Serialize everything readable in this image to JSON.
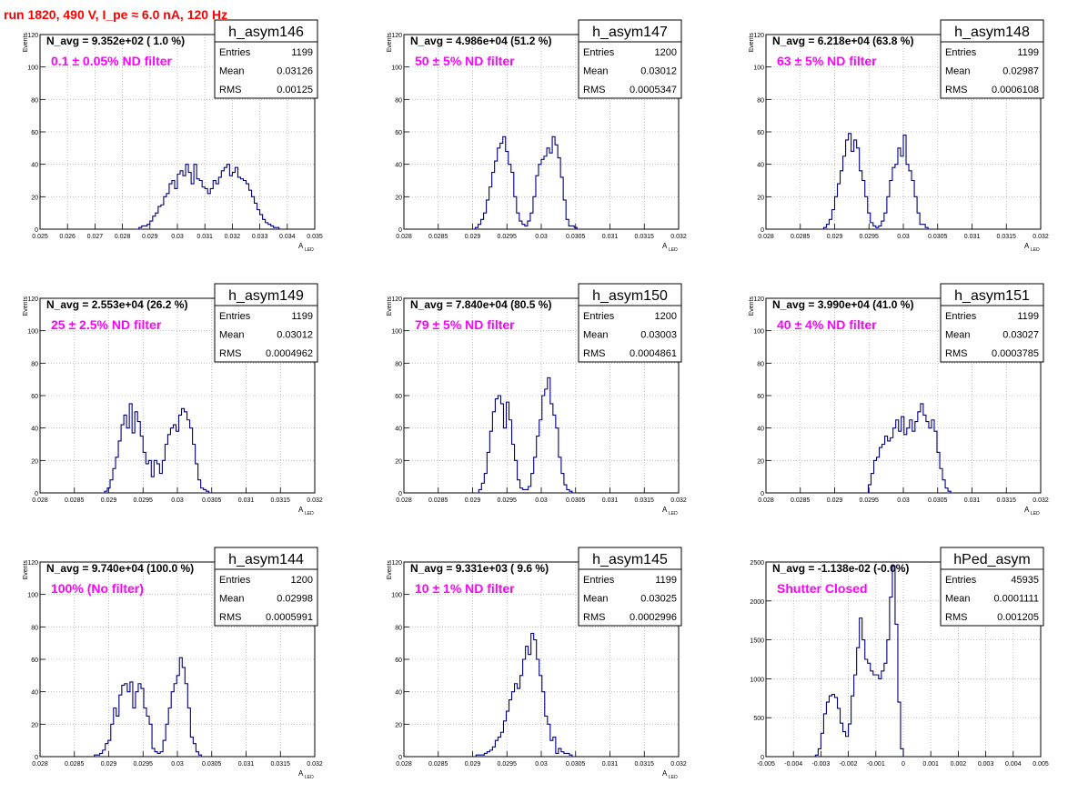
{
  "run_title": "run 1820,   490 V, I_pe ≈ 6.0 nA, 120 Hz",
  "colors": {
    "histogram": "#000080",
    "filter_text": "#ff00ff",
    "title": "#ff0000",
    "frame": "#000000"
  },
  "stats_labels": {
    "entries": "Entries",
    "mean": "Mean",
    "rms": "RMS"
  },
  "chart_data": [
    {
      "type": "histogram",
      "name": "h_asym146",
      "navg": "N_avg = 9.352e+02 ( 1.0 %)",
      "filter": "0.1 ± 0.05% ND filter",
      "entries": "1199",
      "mean": "0.03126",
      "rms": "0.00125",
      "xlabel": "A",
      "xlabel_sub": "LED",
      "ylabel": "Events",
      "xlim": [
        0.025,
        0.035
      ],
      "ylim": [
        0,
        120
      ],
      "xticks": [
        0.025,
        0.026,
        0.027,
        0.028,
        0.029,
        0.03,
        0.031,
        0.032,
        0.033,
        0.034,
        0.035
      ],
      "xtick_labels": [
        "0.025",
        "0.026",
        "0.027",
        "0.028",
        "0.029",
        "0.03",
        "0.031",
        "0.032",
        "0.033",
        "0.034",
        "0.035"
      ],
      "yticks": [
        0,
        20,
        40,
        60,
        80,
        100,
        120
      ],
      "ytick_labels": [
        "0",
        "20",
        "40",
        "60",
        "80",
        "100",
        "120"
      ],
      "bin_start": 0.0285,
      "bin_width": 0.0001,
      "values": [
        0,
        1,
        2,
        2,
        3,
        5,
        8,
        10,
        14,
        15,
        20,
        22,
        28,
        30,
        25,
        34,
        36,
        33,
        40,
        35,
        28,
        40,
        31,
        30,
        26,
        25,
        22,
        25,
        30,
        28,
        32,
        36,
        38,
        40,
        33,
        35,
        38,
        32,
        31,
        30,
        28,
        24,
        20,
        16,
        12,
        9,
        6,
        4,
        3,
        2,
        1,
        1
      ]
    },
    {
      "type": "histogram",
      "name": "h_asym147",
      "navg": "N_avg = 4.986e+04 (51.2 %)",
      "filter": "50 ± 5% ND filter",
      "entries": "1200",
      "mean": "0.03012",
      "rms": "0.0005347",
      "xlabel": "A",
      "xlabel_sub": "LED",
      "ylabel": "Events",
      "xlim": [
        0.028,
        0.032
      ],
      "ylim": [
        0,
        120
      ],
      "xticks": [
        0.028,
        0.0285,
        0.029,
        0.0295,
        0.03,
        0.0305,
        0.031,
        0.0315,
        0.032
      ],
      "xtick_labels": [
        "0.028",
        "0.0285",
        "0.029",
        "0.0295",
        "0.03",
        "0.0305",
        "0.031",
        "0.0315",
        "0.032"
      ],
      "yticks": [
        0,
        20,
        40,
        60,
        80,
        100,
        120
      ],
      "ytick_labels": [
        "0",
        "20",
        "40",
        "60",
        "80",
        "100",
        "120"
      ],
      "bin_start": 0.029,
      "bin_width": 4e-05,
      "values": [
        0,
        1,
        3,
        6,
        10,
        18,
        26,
        35,
        42,
        50,
        53,
        57,
        48,
        40,
        35,
        20,
        10,
        5,
        3,
        2,
        5,
        10,
        20,
        33,
        40,
        43,
        45,
        50,
        47,
        57,
        52,
        44,
        32,
        18,
        6,
        2,
        2,
        1,
        0
      ]
    },
    {
      "type": "histogram",
      "name": "h_asym148",
      "navg": "N_avg = 6.218e+04 (63.8 %)",
      "filter": "63 ± 5% ND filter",
      "entries": "1199",
      "mean": "0.02987",
      "rms": "0.0006108",
      "xlabel": "A",
      "xlabel_sub": "LED",
      "ylabel": "Events",
      "xlim": [
        0.028,
        0.032
      ],
      "ylim": [
        0,
        120
      ],
      "xticks": [
        0.028,
        0.0285,
        0.029,
        0.0295,
        0.03,
        0.0305,
        0.031,
        0.0315,
        0.032
      ],
      "xtick_labels": [
        "0.028",
        "0.0285",
        "0.029",
        "0.0295",
        "0.03",
        "0.0305",
        "0.031",
        "0.0315",
        "0.032"
      ],
      "yticks": [
        0,
        20,
        40,
        60,
        80,
        100,
        120
      ],
      "ytick_labels": [
        "0",
        "20",
        "40",
        "60",
        "80",
        "100",
        "120"
      ],
      "bin_start": 0.0288,
      "bin_width": 4e-05,
      "values": [
        0,
        1,
        3,
        6,
        12,
        20,
        28,
        36,
        45,
        55,
        59,
        48,
        55,
        50,
        36,
        30,
        20,
        10,
        4,
        2,
        1,
        2,
        5,
        10,
        20,
        30,
        38,
        40,
        50,
        45,
        58,
        40,
        36,
        30,
        20,
        10,
        3,
        3,
        1,
        0
      ]
    },
    {
      "type": "histogram",
      "name": "h_asym149",
      "navg": "N_avg = 2.553e+04 (26.2 %)",
      "filter": "25 ± 2.5% ND filter",
      "entries": "1199",
      "mean": "0.03012",
      "rms": "0.0004962",
      "xlabel": "A",
      "xlabel_sub": "LED",
      "ylabel": "Events",
      "xlim": [
        0.028,
        0.032
      ],
      "ylim": [
        0,
        120
      ],
      "xticks": [
        0.028,
        0.0285,
        0.029,
        0.0295,
        0.03,
        0.0305,
        0.031,
        0.0315,
        0.032
      ],
      "xtick_labels": [
        "0.028",
        "0.0285",
        "0.029",
        "0.0295",
        "0.03",
        "0.0305",
        "0.031",
        "0.0315",
        "0.032"
      ],
      "yticks": [
        0,
        20,
        40,
        60,
        80,
        100,
        120
      ],
      "ytick_labels": [
        "0",
        "20",
        "40",
        "60",
        "80",
        "100",
        "120"
      ],
      "bin_start": 0.0289,
      "bin_width": 4e-05,
      "values": [
        0,
        1,
        3,
        8,
        15,
        22,
        32,
        42,
        48,
        40,
        55,
        37,
        50,
        44,
        35,
        25,
        18,
        20,
        10,
        20,
        18,
        12,
        20,
        30,
        36,
        40,
        42,
        38,
        48,
        52,
        50,
        45,
        40,
        30,
        18,
        8,
        3,
        2,
        1,
        0
      ]
    },
    {
      "type": "histogram",
      "name": "h_asym150",
      "navg": "N_avg = 7.840e+04 (80.5 %)",
      "filter": "79 ± 5% ND filter",
      "entries": "1200",
      "mean": "0.03003",
      "rms": "0.0004861",
      "xlabel": "A",
      "xlabel_sub": "LED",
      "ylabel": "Events",
      "xlim": [
        0.028,
        0.032
      ],
      "ylim": [
        0,
        120
      ],
      "xticks": [
        0.028,
        0.0285,
        0.029,
        0.0295,
        0.03,
        0.0305,
        0.031,
        0.0315,
        0.032
      ],
      "xtick_labels": [
        "0.028",
        "0.0285",
        "0.029",
        "0.0295",
        "0.03",
        "0.0305",
        "0.031",
        "0.0315",
        "0.032"
      ],
      "yticks": [
        0,
        20,
        40,
        60,
        80,
        100,
        120
      ],
      "ytick_labels": [
        "0",
        "20",
        "40",
        "60",
        "80",
        "100",
        "120"
      ],
      "bin_start": 0.02905,
      "bin_width": 4e-05,
      "values": [
        0,
        2,
        6,
        12,
        25,
        38,
        50,
        58,
        60,
        55,
        40,
        56,
        45,
        30,
        20,
        8,
        3,
        2,
        2,
        4,
        12,
        22,
        35,
        45,
        60,
        64,
        71,
        55,
        48,
        40,
        22,
        12,
        5,
        2,
        1,
        0
      ]
    },
    {
      "type": "histogram",
      "name": "h_asym151",
      "navg": "N_avg = 3.990e+04 (41.0 %)",
      "filter": "40 ± 4% ND filter",
      "entries": "1199",
      "mean": "0.03027",
      "rms": "0.0003785",
      "xlabel": "A",
      "xlabel_sub": "LED",
      "ylabel": "Events",
      "xlim": [
        0.028,
        0.032
      ],
      "ylim": [
        0,
        120
      ],
      "xticks": [
        0.028,
        0.0285,
        0.029,
        0.0295,
        0.03,
        0.0305,
        0.031,
        0.0315,
        0.032
      ],
      "xtick_labels": [
        "0.028",
        "0.0285",
        "0.029",
        "0.0295",
        "0.03",
        "0.0305",
        "0.031",
        "0.0315",
        "0.032"
      ],
      "yticks": [
        0,
        20,
        40,
        60,
        80,
        100,
        120
      ],
      "ytick_labels": [
        "0",
        "20",
        "40",
        "60",
        "80",
        "100",
        "120"
      ],
      "bin_start": 0.02945,
      "bin_width": 4e-05,
      "values": [
        0,
        5,
        12,
        20,
        22,
        28,
        30,
        35,
        32,
        34,
        40,
        45,
        38,
        47,
        36,
        40,
        45,
        38,
        44,
        50,
        55,
        48,
        44,
        40,
        45,
        38,
        25,
        15,
        8,
        3,
        1,
        0
      ]
    },
    {
      "type": "histogram",
      "name": "h_asym144",
      "navg": "N_avg = 9.740e+04 (100.0 %)",
      "filter": "100% (No filter)",
      "entries": "1200",
      "mean": "0.02998",
      "rms": "0.0005991",
      "xlabel": "A",
      "xlabel_sub": "LED",
      "ylabel": "Events",
      "xlim": [
        0.028,
        0.032
      ],
      "ylim": [
        0,
        120
      ],
      "xticks": [
        0.028,
        0.0285,
        0.029,
        0.0295,
        0.03,
        0.0305,
        0.031,
        0.0315,
        0.032
      ],
      "xtick_labels": [
        "0.028",
        "0.0285",
        "0.029",
        "0.0295",
        "0.03",
        "0.0305",
        "0.031",
        "0.0315",
        "0.032"
      ],
      "yticks": [
        0,
        20,
        40,
        60,
        80,
        100,
        120
      ],
      "ytick_labels": [
        "0",
        "20",
        "40",
        "60",
        "80",
        "100",
        "120"
      ],
      "bin_start": 0.02875,
      "bin_width": 4e-05,
      "values": [
        0,
        1,
        1,
        2,
        4,
        8,
        10,
        20,
        30,
        25,
        38,
        44,
        45,
        40,
        46,
        30,
        40,
        45,
        42,
        30,
        25,
        20,
        5,
        3,
        2,
        3,
        10,
        20,
        30,
        40,
        45,
        50,
        61,
        55,
        45,
        30,
        12,
        8,
        3,
        1,
        0
      ]
    },
    {
      "type": "histogram",
      "name": "h_asym145",
      "navg": "N_avg = 9.331e+03 ( 9.6 %)",
      "filter": "10 ± 1% ND filter",
      "entries": "1199",
      "mean": "0.03025",
      "rms": "0.0002996",
      "xlabel": "A",
      "xlabel_sub": "LED",
      "ylabel": "Events",
      "xlim": [
        0.028,
        0.032
      ],
      "ylim": [
        0,
        120
      ],
      "xticks": [
        0.028,
        0.0285,
        0.029,
        0.0295,
        0.03,
        0.0305,
        0.031,
        0.0315,
        0.032
      ],
      "xtick_labels": [
        "0.028",
        "0.0285",
        "0.029",
        "0.0295",
        "0.03",
        "0.0305",
        "0.031",
        "0.0315",
        "0.032"
      ],
      "yticks": [
        0,
        20,
        40,
        60,
        80,
        100,
        120
      ],
      "ytick_labels": [
        "0",
        "20",
        "40",
        "60",
        "80",
        "100",
        "120"
      ],
      "bin_start": 0.02905,
      "bin_width": 4e-05,
      "values": [
        1,
        1,
        1,
        2,
        3,
        4,
        6,
        10,
        12,
        15,
        22,
        28,
        35,
        40,
        45,
        42,
        50,
        60,
        68,
        63,
        76,
        72,
        60,
        50,
        40,
        25,
        20,
        10,
        12,
        2,
        5,
        3,
        2,
        2,
        1,
        0
      ]
    },
    {
      "type": "histogram",
      "name": "hPed_asym",
      "navg": "N_avg = -1.138e-02 (-0.0%)",
      "filter": "Shutter Closed",
      "entries": "45935",
      "mean": "0.0001111",
      "rms": "0.001205",
      "xlabel": "",
      "xlabel_sub": "",
      "ylabel": "",
      "xlim": [
        -0.005,
        0.005
      ],
      "ylim": [
        0,
        2500
      ],
      "xticks": [
        -0.005,
        -0.004,
        -0.003,
        -0.002,
        -0.001,
        0,
        0.001,
        0.002,
        0.003,
        0.004,
        0.005
      ],
      "xtick_labels": [
        "-0.005",
        "-0.004",
        "-0.003",
        "-0.002",
        "-0.001",
        "0",
        "0.001",
        "0.002",
        "0.003",
        "0.004",
        "0.005"
      ],
      "yticks": [
        0,
        500,
        1000,
        1500,
        2000,
        2500
      ],
      "ytick_labels": [
        "0",
        "500",
        "1000",
        "1500",
        "2000",
        "2500"
      ],
      "bin_start": -0.0032,
      "bin_width": 0.0001,
      "values": [
        20,
        100,
        300,
        550,
        700,
        780,
        800,
        760,
        620,
        430,
        320,
        260,
        420,
        780,
        1050,
        1400,
        1780,
        1500,
        1250,
        1200,
        1100,
        1050,
        1050,
        1000,
        1100,
        1200,
        1500,
        2050,
        2450,
        1700,
        700,
        100,
        0
      ]
    }
  ]
}
